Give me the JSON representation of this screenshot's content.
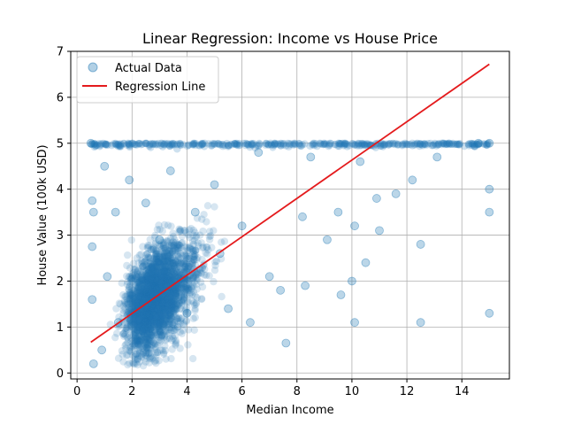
{
  "chart_data": {
    "type": "scatter",
    "title": "Linear Regression: Income vs House Price",
    "xlabel": "Median Income",
    "ylabel": "House Value (100k USD)",
    "xlim": [
      -0.23,
      15.73
    ],
    "ylim": [
      -0.13,
      7.0
    ],
    "xticks": [
      0,
      2,
      4,
      6,
      8,
      10,
      12,
      14
    ],
    "yticks": [
      0,
      1,
      2,
      3,
      4,
      5,
      6,
      7
    ],
    "grid": true,
    "legend_placement": "top-left",
    "series": [
      {
        "name": "Actual Data",
        "kind": "scatter",
        "color": "#1f77b4",
        "alpha": 0.3,
        "points": [
          [
            0.5,
            5.0
          ],
          [
            0.6,
            0.2
          ],
          [
            0.55,
            3.75
          ],
          [
            0.6,
            3.5
          ],
          [
            0.55,
            2.75
          ],
          [
            0.55,
            1.6
          ],
          [
            0.9,
            0.5
          ],
          [
            1.0,
            4.5
          ],
          [
            1.4,
            3.5
          ],
          [
            1.1,
            2.1
          ],
          [
            1.9,
            4.2
          ],
          [
            1.5,
            1.1
          ],
          [
            2.5,
            3.7
          ],
          [
            3.0,
            2.9
          ],
          [
            3.4,
            4.4
          ],
          [
            4.0,
            1.3
          ],
          [
            4.3,
            3.5
          ],
          [
            5.0,
            4.1
          ],
          [
            5.2,
            2.6
          ],
          [
            5.5,
            1.4
          ],
          [
            6.0,
            3.2
          ],
          [
            6.3,
            1.1
          ],
          [
            6.6,
            4.8
          ],
          [
            7.0,
            2.1
          ],
          [
            7.4,
            1.8
          ],
          [
            7.6,
            0.65
          ],
          [
            8.2,
            3.4
          ],
          [
            8.3,
            1.9
          ],
          [
            8.5,
            4.7
          ],
          [
            9.1,
            2.9
          ],
          [
            9.5,
            3.5
          ],
          [
            9.6,
            1.7
          ],
          [
            10.0,
            2.0
          ],
          [
            10.1,
            1.1
          ],
          [
            10.1,
            3.2
          ],
          [
            10.3,
            4.6
          ],
          [
            10.5,
            2.4
          ],
          [
            10.9,
            3.8
          ],
          [
            11.0,
            3.1
          ],
          [
            11.6,
            3.9
          ],
          [
            12.2,
            4.2
          ],
          [
            12.5,
            2.8
          ],
          [
            12.5,
            1.1
          ],
          [
            13.1,
            4.7
          ],
          [
            14.6,
            5.0
          ],
          [
            15.0,
            5.0
          ],
          [
            15.0,
            4.0
          ],
          [
            15.0,
            3.5
          ],
          [
            15.0,
            1.3
          ]
        ]
      },
      {
        "name": "Regression Line",
        "kind": "line",
        "color": "#e41a1c",
        "x": [
          0.5,
          15.0
        ],
        "y": [
          0.67,
          6.72
        ]
      }
    ]
  }
}
